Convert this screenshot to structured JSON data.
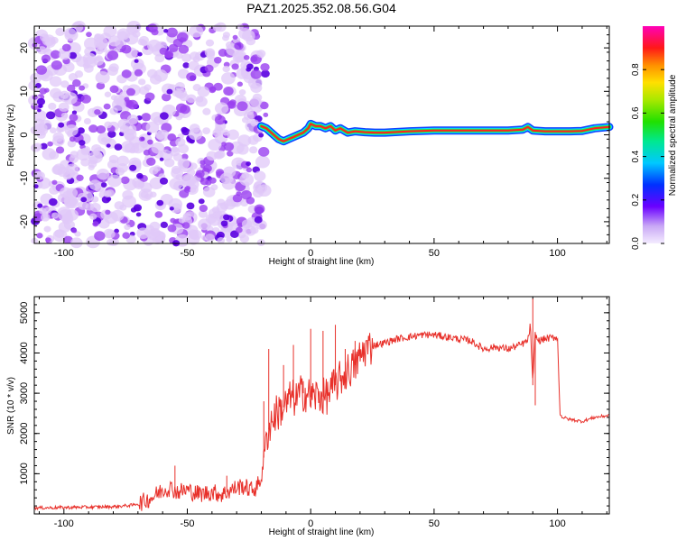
{
  "title": "PAZ1.2025.352.08.56.G04",
  "chart_data": [
    {
      "type": "heatmap",
      "name": "spectrogram",
      "xlabel": "Height of straight line (km)",
      "ylabel": "Frequency (Hz)",
      "xlim": [
        -112,
        121
      ],
      "ylim": [
        -25,
        25
      ],
      "xticks": [
        -100,
        -50,
        0,
        50,
        100
      ],
      "yticks": [
        -20,
        -10,
        0,
        10,
        20
      ],
      "tick_labels_x": [
        "-100",
        "-50",
        "0",
        "50",
        "100"
      ],
      "tick_labels_y": [
        "-20",
        "-10",
        "0",
        "10",
        "20"
      ],
      "noise_region_x": [
        -112,
        -18
      ],
      "signal_trace": {
        "x": [
          -20,
          -18,
          -15,
          -13,
          -11,
          -9,
          -7,
          -5,
          -3,
          -1,
          0,
          2,
          4,
          6,
          8,
          10,
          12,
          15,
          18,
          22,
          26,
          30,
          40,
          50,
          60,
          70,
          80,
          86,
          88,
          90,
          95,
          100,
          105,
          110,
          115,
          121
        ],
        "y": [
          2.0,
          1.5,
          0.0,
          -1.0,
          -1.5,
          -1.0,
          -0.5,
          0.0,
          0.5,
          1.5,
          2.5,
          2.0,
          2.0,
          1.5,
          2.0,
          1.0,
          1.5,
          0.5,
          0.8,
          0.6,
          0.5,
          0.5,
          0.8,
          1.0,
          1.0,
          1.0,
          1.0,
          1.2,
          1.8,
          1.0,
          0.8,
          0.8,
          0.8,
          0.9,
          1.5,
          1.8
        ]
      },
      "colorbar": {
        "label": "Normalized spectral amplitude",
        "range": [
          0.0,
          1.0
        ],
        "ticks": [
          0.0,
          0.2,
          0.4,
          0.6,
          0.8
        ],
        "tick_labels": [
          "0.0",
          "0.2",
          "0.4",
          "0.6",
          "0.8"
        ]
      },
      "colors": {
        "low": "#e0c8f8",
        "mid_low": "#9a40f0",
        "dark": "#5a00e0",
        "signal_edge": "#1040ff",
        "signal_mid": "#00e0ff",
        "signal_core": "#ff2020"
      }
    },
    {
      "type": "line",
      "name": "snr",
      "xlabel": "Height of straight line (km)",
      "ylabel": "SNR (10 * v/v)",
      "xlim": [
        -112,
        121
      ],
      "ylim": [
        0,
        5400
      ],
      "xticks": [
        -100,
        -50,
        0,
        50,
        100
      ],
      "yticks": [
        1000,
        2000,
        3000,
        4000,
        5000
      ],
      "tick_labels_x": [
        "-100",
        "-50",
        "0",
        "50",
        "100"
      ],
      "tick_labels_y": [
        "1000",
        "2000",
        "3000",
        "4000",
        "5000"
      ],
      "color": "#e8302a",
      "series": {
        "x": [
          -112,
          -100,
          -90,
          -80,
          -72,
          -68,
          -64,
          -60,
          -57,
          -54,
          -50,
          -47,
          -44,
          -40,
          -36,
          -32,
          -28,
          -24,
          -22,
          -20,
          -18,
          -16,
          -14,
          -12,
          -10,
          -8,
          -6,
          -4,
          -2,
          0,
          3,
          6,
          10,
          14,
          18,
          22,
          26,
          30,
          35,
          40,
          45,
          50,
          55,
          60,
          65,
          70,
          75,
          80,
          85,
          88,
          89,
          90,
          91,
          92,
          95,
          100,
          101,
          102,
          105,
          110,
          115,
          121
        ],
        "y": [
          150,
          160,
          170,
          180,
          220,
          300,
          420,
          600,
          650,
          550,
          600,
          520,
          500,
          550,
          480,
          600,
          700,
          600,
          650,
          900,
          1900,
          2300,
          2500,
          2600,
          2700,
          2900,
          2850,
          3000,
          3000,
          2900,
          2950,
          2900,
          3200,
          3500,
          3700,
          4100,
          4200,
          4250,
          4350,
          4400,
          4450,
          4450,
          4400,
          4350,
          4300,
          4100,
          4150,
          4100,
          4200,
          4300,
          4700,
          3200,
          4500,
          4300,
          4350,
          4400,
          2500,
          2400,
          2350,
          2300,
          2400,
          2450
        ]
      },
      "spikes": {
        "x": [
          -55,
          -34,
          -19,
          -17,
          -11,
          -7,
          -3,
          0,
          5,
          10,
          14,
          18,
          90,
          91
        ],
        "y": [
          1200,
          950,
          2800,
          4100,
          3700,
          4200,
          3300,
          4600,
          4550,
          4700,
          4100,
          4300,
          5350,
          2700
        ]
      }
    }
  ]
}
